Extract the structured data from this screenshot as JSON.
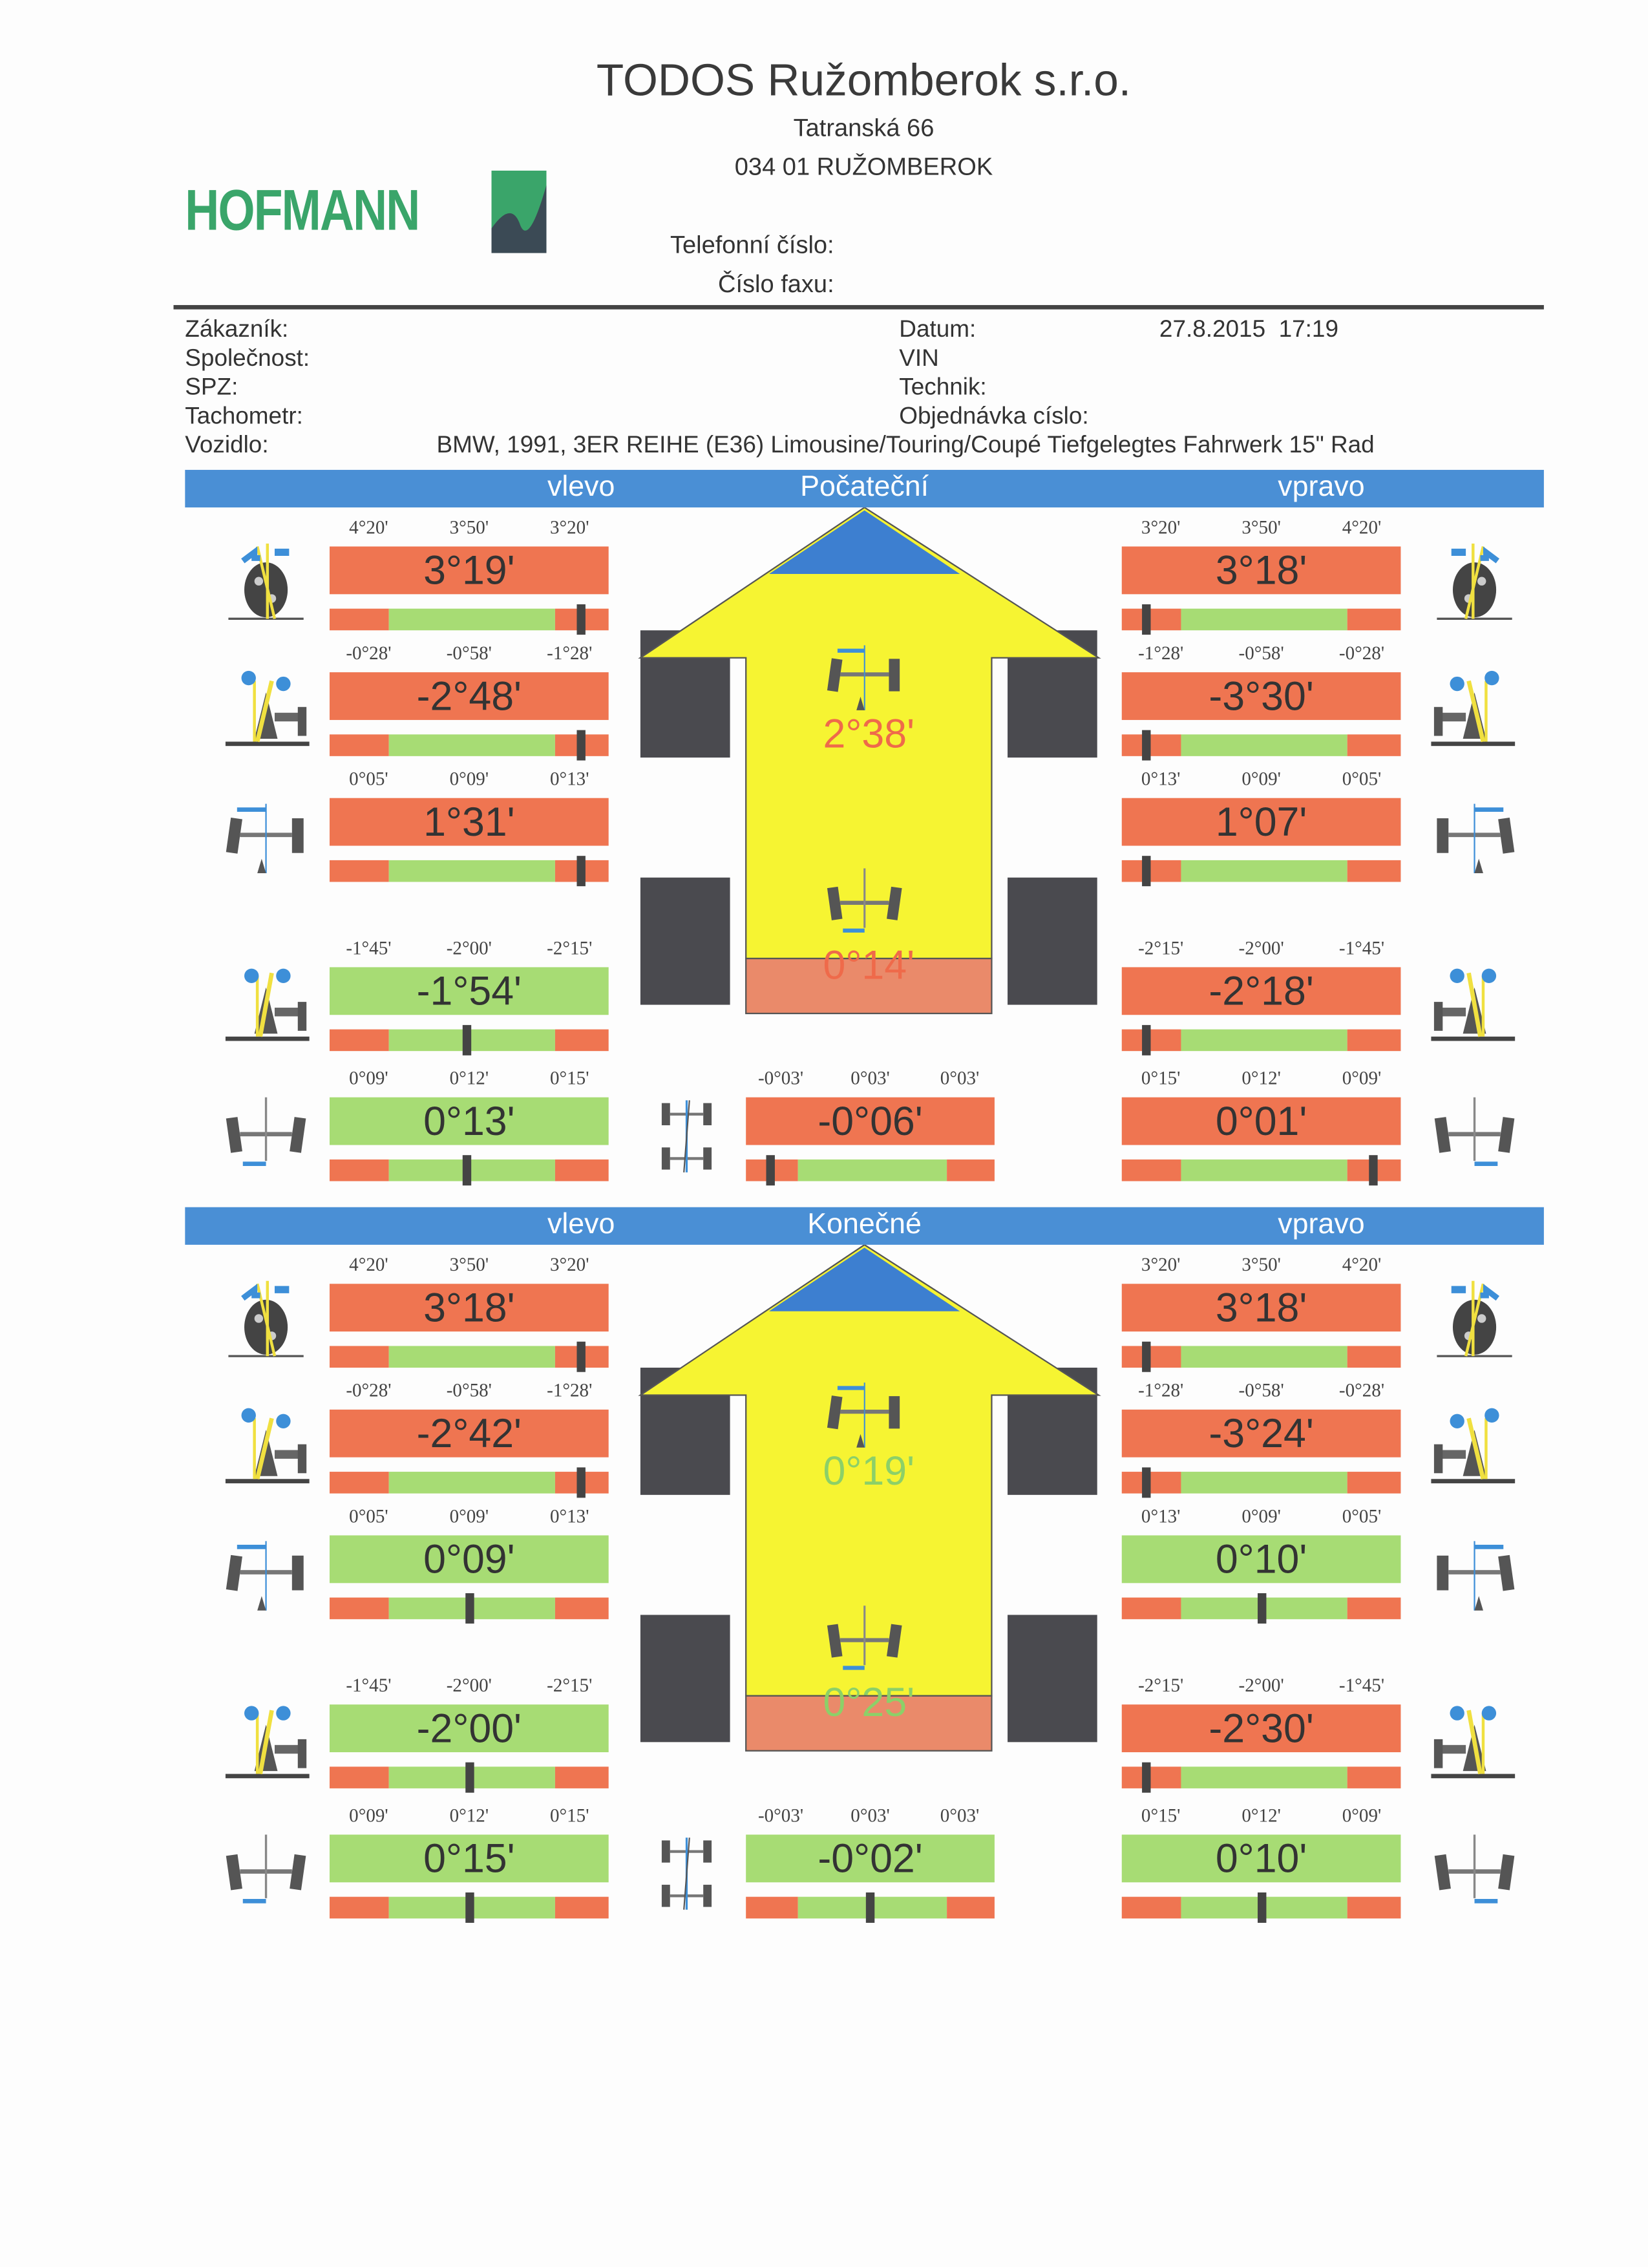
{
  "header": {
    "company": "TODOS Ružomberok s.r.o.",
    "street": "Tatranská 66",
    "city": "034 01 RUŽOMBEROK",
    "phone_label": "Telefonní číslo:",
    "fax_label": "Číslo faxu:",
    "logo_text": "HOFMANN"
  },
  "info": {
    "customer_label": "Zákazník:",
    "company_label": "Společnost:",
    "plate_label": "SPZ:",
    "odometer_label": "Tachometr:",
    "vehicle_label": "Vozidlo:",
    "vehicle_value": "BMW, 1991, 3ER REIHE (E36) Limousine/Touring/Coupé Tiefgelegtes Fahrwerk 15\" Rad",
    "date_label": "Datum:",
    "date_value": "27.8.2015  17:19",
    "vin_label": "VIN",
    "technician_label": "Technik:",
    "order_label": "Objednávka císlo:"
  },
  "colors": {
    "blue": "#4a8fd5",
    "red": "#ef7551",
    "green": "#a7dc74",
    "yellow": "#f6f432",
    "marker": "#444444"
  },
  "sections": [
    {
      "left_label": "vlevo",
      "title": "Počateční",
      "right_label": "vpravo",
      "center_top": {
        "value": "2°38'",
        "status": "red"
      },
      "center_bottom": {
        "value": "0°14'",
        "status": "red"
      },
      "left": [
        {
          "icon": "caster-icon",
          "ticks": [
            "4°20'",
            "3°50'",
            "3°20'"
          ],
          "value": "3°19'",
          "status": "red",
          "indicator": 0.9
        },
        {
          "icon": "kingpin-icon",
          "ticks": [
            "-0°28'",
            "-0°58'",
            "-1°28'"
          ],
          "value": "-2°48'",
          "status": "red",
          "indicator": 0.9
        },
        {
          "icon": "toe-front-icon",
          "ticks": [
            "0°05'",
            "0°09'",
            "0°13'"
          ],
          "value": "1°31'",
          "status": "red",
          "indicator": 0.9
        },
        {
          "icon": "camber-icon",
          "ticks": [
            "-1°45'",
            "-2°00'",
            "-2°15'"
          ],
          "value": "-1°54'",
          "status": "green",
          "indicator": 0.49
        },
        {
          "icon": "toe-rear-icon",
          "ticks": [
            "0°09'",
            "0°12'",
            "0°15'"
          ],
          "value": "0°13'",
          "status": "green",
          "indicator": 0.49
        }
      ],
      "right": [
        {
          "icon": "caster-icon",
          "ticks": [
            "3°20'",
            "3°50'",
            "4°20'"
          ],
          "value": "3°18'",
          "status": "red",
          "indicator": 0.09
        },
        {
          "icon": "kingpin-icon",
          "ticks": [
            "-1°28'",
            "-0°58'",
            "-0°28'"
          ],
          "value": "-3°30'",
          "status": "red",
          "indicator": 0.09
        },
        {
          "icon": "toe-front-icon",
          "ticks": [
            "0°13'",
            "0°09'",
            "0°05'"
          ],
          "value": "1°07'",
          "status": "red",
          "indicator": 0.09
        },
        {
          "icon": "camber-icon",
          "ticks": [
            "-2°15'",
            "-2°00'",
            "-1°45'"
          ],
          "value": "-2°18'",
          "status": "red",
          "indicator": 0.09
        },
        {
          "icon": "toe-rear-icon",
          "ticks": [
            "0°15'",
            "0°12'",
            "0°09'"
          ],
          "value": "0°01'",
          "status": "red",
          "indicator": 0.9
        }
      ],
      "center_row": {
        "icon": "thrust-angle-icon",
        "ticks": [
          "-0°03'",
          "0°03'",
          "0°03'"
        ],
        "value": "-0°06'",
        "status": "red",
        "indicator": 0.1
      }
    },
    {
      "left_label": "vlevo",
      "title": "Konečné",
      "right_label": "vpravo",
      "center_top": {
        "value": "0°19'",
        "status": "green"
      },
      "center_bottom": {
        "value": "0°25'",
        "status": "green"
      },
      "left": [
        {
          "icon": "caster-icon",
          "ticks": [
            "4°20'",
            "3°50'",
            "3°20'"
          ],
          "value": "3°18'",
          "status": "red",
          "indicator": 0.9
        },
        {
          "icon": "kingpin-icon",
          "ticks": [
            "-0°28'",
            "-0°58'",
            "-1°28'"
          ],
          "value": "-2°42'",
          "status": "red",
          "indicator": 0.9
        },
        {
          "icon": "toe-front-icon",
          "ticks": [
            "0°05'",
            "0°09'",
            "0°13'"
          ],
          "value": "0°09'",
          "status": "green",
          "indicator": 0.5
        },
        {
          "icon": "camber-icon",
          "ticks": [
            "-1°45'",
            "-2°00'",
            "-2°15'"
          ],
          "value": "-2°00'",
          "status": "green",
          "indicator": 0.5
        },
        {
          "icon": "toe-rear-icon",
          "ticks": [
            "0°09'",
            "0°12'",
            "0°15'"
          ],
          "value": "0°15'",
          "status": "green",
          "indicator": 0.5
        }
      ],
      "right": [
        {
          "icon": "caster-icon",
          "ticks": [
            "3°20'",
            "3°50'",
            "4°20'"
          ],
          "value": "3°18'",
          "status": "red",
          "indicator": 0.09
        },
        {
          "icon": "kingpin-icon",
          "ticks": [
            "-1°28'",
            "-0°58'",
            "-0°28'"
          ],
          "value": "-3°24'",
          "status": "red",
          "indicator": 0.09
        },
        {
          "icon": "toe-front-icon",
          "ticks": [
            "0°13'",
            "0°09'",
            "0°05'"
          ],
          "value": "0°10'",
          "status": "green",
          "indicator": 0.5
        },
        {
          "icon": "camber-icon",
          "ticks": [
            "-2°15'",
            "-2°00'",
            "-1°45'"
          ],
          "value": "-2°30'",
          "status": "red",
          "indicator": 0.09
        },
        {
          "icon": "toe-rear-icon",
          "ticks": [
            "0°15'",
            "0°12'",
            "0°09'"
          ],
          "value": "0°10'",
          "status": "green",
          "indicator": 0.5
        }
      ],
      "center_row": {
        "icon": "thrust-angle-icon",
        "ticks": [
          "-0°03'",
          "0°03'",
          "0°03'"
        ],
        "value": "-0°02'",
        "status": "green",
        "indicator": 0.5
      }
    }
  ]
}
